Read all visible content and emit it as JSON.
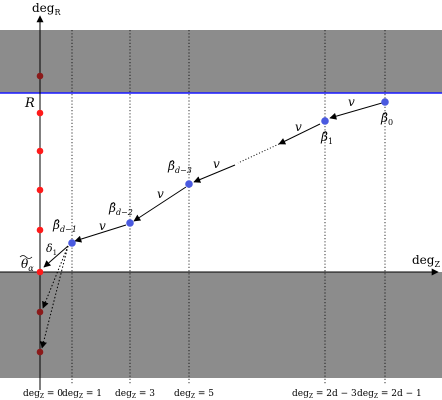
{
  "axes": {
    "y_label": "deg",
    "y_label_sub": "R",
    "x_label": "deg",
    "x_label_sub": "Z"
  },
  "levels": {
    "R_label": "R",
    "theta_label": "θ",
    "theta_sub": "α"
  },
  "points": [
    {
      "label": "β̂",
      "sub": "0"
    },
    {
      "label": "β̂",
      "sub": "1"
    },
    {
      "label": "β̂",
      "sub": "d−3"
    },
    {
      "label": "β̂",
      "sub": "d−2"
    },
    {
      "label": "β̂",
      "sub": "d−1"
    }
  ],
  "edge_labels": {
    "v1": "v",
    "v2": "v",
    "v3": "v",
    "v4": "v",
    "v5": "v",
    "delta": "δ",
    "delta_sub": "1"
  },
  "ticks": [
    {
      "prefix": "deg",
      "sub": "Z",
      "suffix": " = 0"
    },
    {
      "prefix": "deg",
      "sub": "Z",
      "suffix": " = 1"
    },
    {
      "prefix": "deg",
      "sub": "Z",
      "suffix": " = 3"
    },
    {
      "prefix": "deg",
      "sub": "Z",
      "suffix": " = 5"
    },
    {
      "prefix": "deg",
      "sub": "Z",
      "suffix": " = 2d − 3"
    },
    {
      "prefix": "deg",
      "sub": "Z",
      "suffix": " = 2d − 1"
    }
  ],
  "colors": {
    "shade": "#8c8c8c",
    "r_line": "#1a1aff",
    "red_dot": "#ff1a1a",
    "dark_red_dot": "#8b1a1a",
    "blue_dot": "#4a5ae0"
  }
}
